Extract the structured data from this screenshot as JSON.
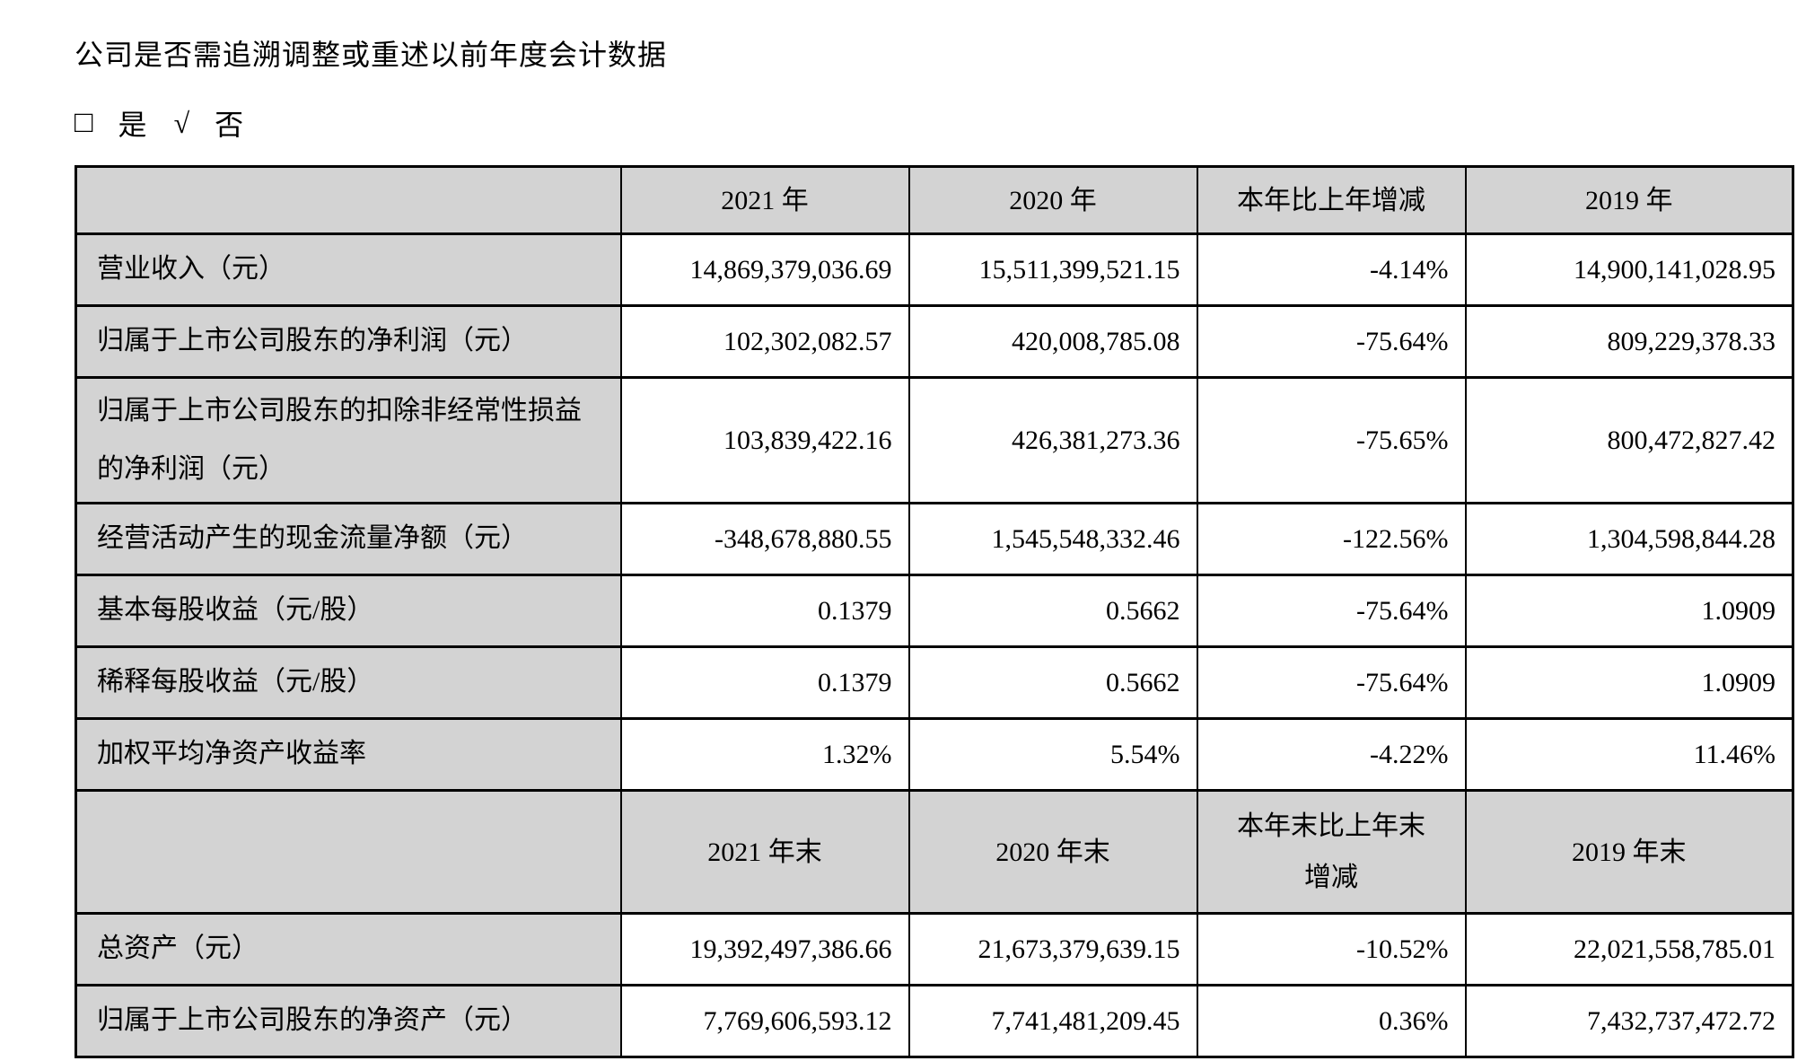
{
  "document": {
    "question": "公司是否需追溯调整或重述以前年度会计数据",
    "checkbox": {
      "unchecked_glyph": "□",
      "yes_label": "是",
      "check_glyph": "√",
      "no_label": "否"
    }
  },
  "table": {
    "period_header": [
      "",
      "2021 年",
      "2020 年",
      "本年比上年增减",
      "2019 年"
    ],
    "period_rows": [
      {
        "label": "营业收入（元）",
        "values": [
          "14,869,379,036.69",
          "15,511,399,521.15",
          "-4.14%",
          "14,900,141,028.95"
        ]
      },
      {
        "label": "归属于上市公司股东的净利润（元）",
        "values": [
          "102,302,082.57",
          "420,008,785.08",
          "-75.64%",
          "809,229,378.33"
        ]
      },
      {
        "label": "归属于上市公司股东的扣除非经常性损益的净利润（元）",
        "values": [
          "103,839,422.16",
          "426,381,273.36",
          "-75.65%",
          "800,472,827.42"
        ]
      },
      {
        "label": "经营活动产生的现金流量净额（元）",
        "values": [
          "-348,678,880.55",
          "1,545,548,332.46",
          "-122.56%",
          "1,304,598,844.28"
        ]
      },
      {
        "label": "基本每股收益（元/股）",
        "values": [
          "0.1379",
          "0.5662",
          "-75.64%",
          "1.0909"
        ]
      },
      {
        "label": "稀释每股收益（元/股）",
        "values": [
          "0.1379",
          "0.5662",
          "-75.64%",
          "1.0909"
        ]
      },
      {
        "label": "加权平均净资产收益率",
        "values": [
          "1.32%",
          "5.54%",
          "-4.22%",
          "11.46%"
        ]
      }
    ],
    "yearend_header": [
      "",
      "2021 年末",
      "2020 年末",
      "本年末比上年末\n增减",
      "2019 年末"
    ],
    "yearend_rows": [
      {
        "label": "总资产（元）",
        "values": [
          "19,392,497,386.66",
          "21,673,379,639.15",
          "-10.52%",
          "22,021,558,785.01"
        ]
      },
      {
        "label": "归属于上市公司股东的净资产（元）",
        "values": [
          "7,769,606,593.12",
          "7,741,481,209.45",
          "0.36%",
          "7,432,737,472.72"
        ]
      }
    ]
  },
  "colors": {
    "header_bg": "#d3d3d3",
    "label_bg": "#d3d3d3",
    "border": "#000000",
    "text": "#000000",
    "page_bg": "#ffffff"
  }
}
